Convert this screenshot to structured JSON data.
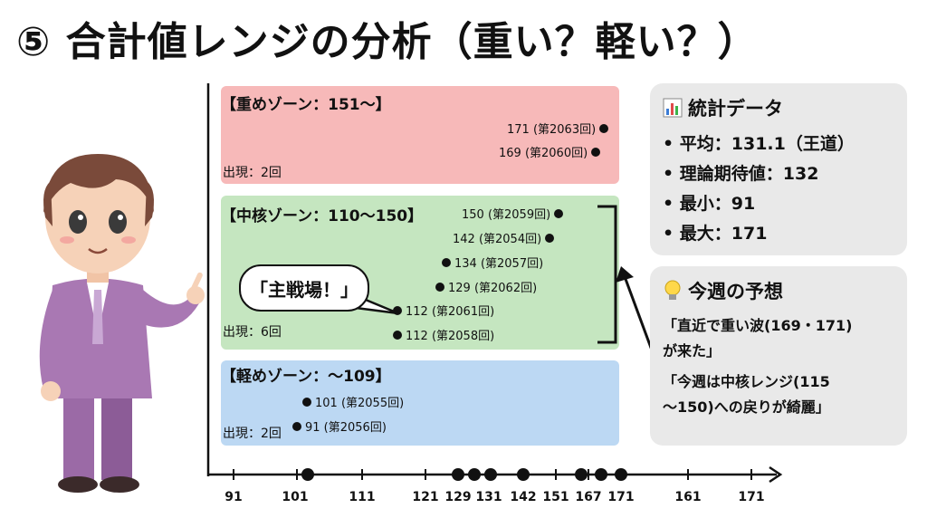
{
  "title": "⑤ 合計値レンジの分析（重い？軽い？）",
  "zones": {
    "heavy": {
      "title": "【重めゾーン：151〜】",
      "count": "出現：2回",
      "points": [
        "171 (第2063回)",
        "169 (第2060回)"
      ]
    },
    "core": {
      "title": "【中核ゾーン：110〜150】",
      "count": "出現：6回",
      "points": [
        "150 (第2059回)",
        "142 (第2054回)",
        "134 (第2057回)",
        "129 (第2062回)",
        "112 (第2061回)",
        "112 (第2058回)"
      ]
    },
    "light": {
      "title": "【軽めゾーン：〜109】",
      "count": "出現：2回",
      "points": [
        "101 (第2055回)",
        "91 (第2056回)"
      ]
    }
  },
  "bubble": "「主戦場！」",
  "stats": {
    "icon": "bar-chart-icon",
    "title": "統計データ",
    "items": [
      "平均：131.1（王道）",
      "理論期待値：132",
      "最小：91",
      "最大：171"
    ]
  },
  "forecast": {
    "icon": "lightbulb-icon",
    "title": "今週の予想",
    "lines": [
      "「直近で重い波(169・171)",
      "が来た」",
      "「今週は中核レンジ(115",
      "〜150)への戻りが綺麗」"
    ]
  },
  "axis": {
    "ticks": [
      "91",
      "101",
      "111",
      "121",
      "129",
      "131",
      "142",
      "151",
      "167",
      "171",
      "161",
      "171"
    ]
  },
  "colors": {
    "heavy": "#f7b9b9",
    "core": "#c5e6c0",
    "light": "#bcd8f3",
    "panel": "#e9e9e9"
  }
}
